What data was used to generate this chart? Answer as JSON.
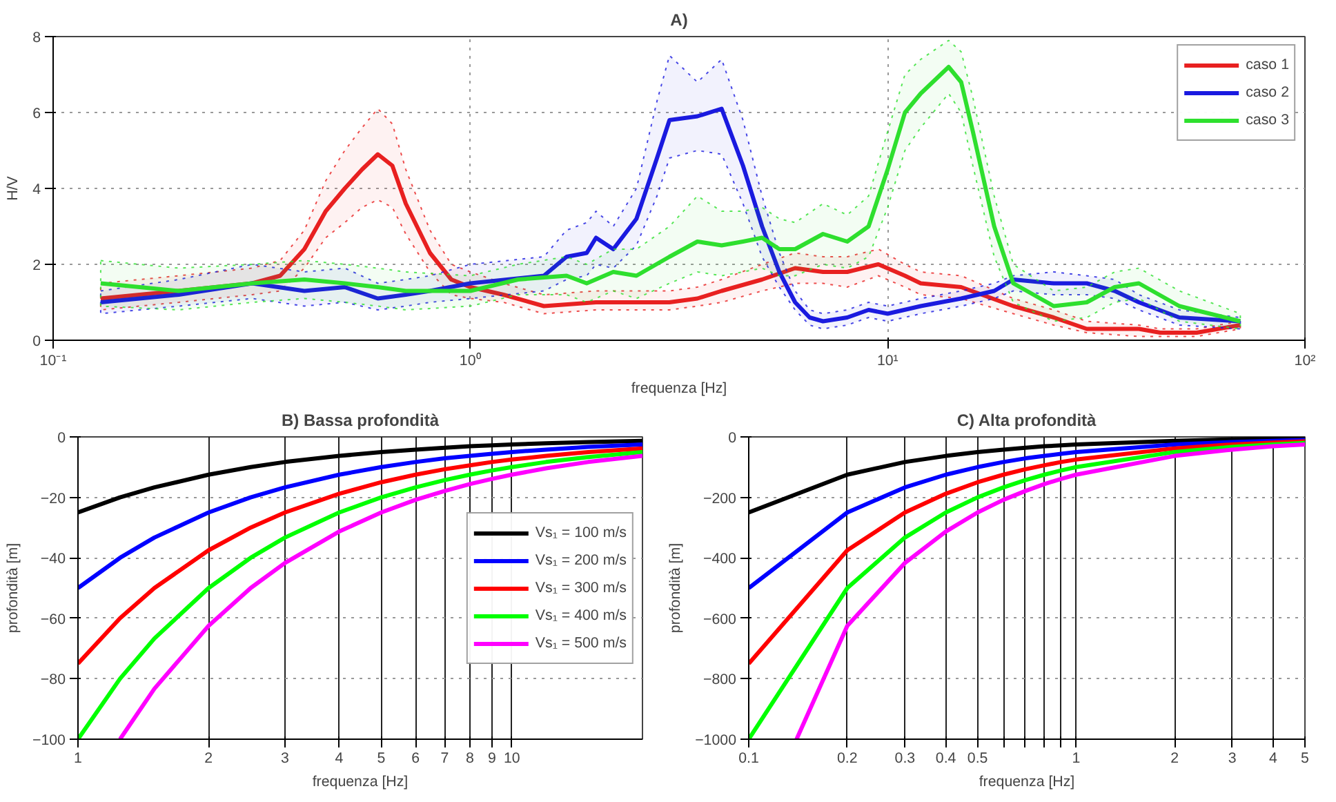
{
  "chart_data": [
    {
      "type": "line",
      "title": "A)",
      "xlabel": "frequenza [Hz]",
      "ylabel": "H/V",
      "log": "x",
      "xlim": [
        0.1,
        100
      ],
      "ylim": [
        0,
        8
      ],
      "xticks": [
        {
          "value": 0.1,
          "label": "10⁻¹"
        },
        {
          "value": 1,
          "label": "10⁰"
        },
        {
          "value": 10,
          "label": "10¹"
        },
        {
          "value": 100,
          "label": "10²"
        }
      ],
      "yticks": [
        0,
        2,
        4,
        6,
        8
      ],
      "grid": true,
      "legend": "top right",
      "line_style": "solid",
      "series": [
        {
          "name": "caso 1",
          "color": "#e82020",
          "x": [
            0.13,
            0.2,
            0.3,
            0.35,
            0.4,
            0.45,
            0.5,
            0.55,
            0.6,
            0.65,
            0.7,
            0.8,
            0.9,
            1,
            1.2,
            1.5,
            2,
            2.5,
            3,
            3.5,
            4,
            5,
            6,
            7,
            8,
            9.5,
            11,
            12,
            15,
            20,
            25,
            30,
            40,
            45,
            55,
            70
          ],
          "values": [
            1.1,
            1.3,
            1.5,
            1.7,
            2.4,
            3.4,
            4.0,
            4.5,
            4.9,
            4.6,
            3.6,
            2.3,
            1.6,
            1.4,
            1.2,
            0.9,
            1.0,
            1.0,
            1.0,
            1.1,
            1.3,
            1.6,
            1.9,
            1.8,
            1.8,
            2.0,
            1.7,
            1.5,
            1.4,
            0.9,
            0.6,
            0.3,
            0.3,
            0.2,
            0.2,
            0.4
          ],
          "upper": [
            1.5,
            1.7,
            1.9,
            2.1,
            2.9,
            4.2,
            5.0,
            5.6,
            6.1,
            5.7,
            4.5,
            2.9,
            2.0,
            1.8,
            1.5,
            1.2,
            1.3,
            1.3,
            1.3,
            1.4,
            1.6,
            2.0,
            2.3,
            2.2,
            2.2,
            2.4,
            2.0,
            1.8,
            1.7,
            1.1,
            0.8,
            0.5,
            0.4,
            0.3,
            0.3,
            0.5
          ],
          "lower": [
            0.8,
            1.0,
            1.2,
            1.3,
            1.9,
            2.7,
            3.1,
            3.5,
            3.7,
            3.5,
            2.8,
            1.8,
            1.2,
            1.1,
            1.0,
            0.7,
            0.8,
            0.8,
            0.8,
            0.9,
            1.0,
            1.3,
            1.5,
            1.5,
            1.4,
            1.7,
            1.4,
            1.2,
            1.1,
            0.7,
            0.4,
            0.2,
            0.1,
            0.1,
            0.1,
            0.3
          ]
        },
        {
          "name": "caso 2",
          "color": "#1a1ae0",
          "x": [
            0.13,
            0.2,
            0.3,
            0.4,
            0.5,
            0.6,
            0.7,
            0.8,
            1,
            1.5,
            1.7,
            1.9,
            2,
            2.2,
            2.5,
            2.8,
            3,
            3.5,
            4,
            4.5,
            5,
            5.5,
            6,
            6.5,
            7,
            8,
            9,
            10,
            12,
            15,
            18,
            20,
            25,
            30,
            35,
            40,
            50,
            70
          ],
          "values": [
            1.0,
            1.2,
            1.5,
            1.3,
            1.4,
            1.1,
            1.2,
            1.3,
            1.5,
            1.7,
            2.2,
            2.3,
            2.7,
            2.4,
            3.2,
            4.8,
            5.8,
            5.9,
            6.1,
            4.6,
            3.0,
            1.8,
            1.0,
            0.6,
            0.5,
            0.6,
            0.8,
            0.7,
            0.9,
            1.1,
            1.3,
            1.6,
            1.5,
            1.5,
            1.3,
            1.0,
            0.6,
            0.5
          ],
          "upper": [
            1.3,
            1.6,
            2.0,
            1.8,
            1.9,
            1.5,
            1.6,
            1.7,
            2.0,
            2.2,
            2.9,
            3.1,
            3.4,
            3.0,
            4.0,
            6.3,
            7.5,
            6.8,
            7.4,
            5.8,
            3.8,
            2.3,
            1.3,
            0.8,
            0.7,
            0.8,
            1.0,
            0.9,
            1.1,
            1.3,
            1.5,
            1.7,
            1.8,
            1.7,
            1.6,
            1.2,
            0.8,
            0.6
          ],
          "lower": [
            0.7,
            0.9,
            1.1,
            0.9,
            1.0,
            0.8,
            0.9,
            1.0,
            1.1,
            1.3,
            1.6,
            1.7,
            2.0,
            1.9,
            2.5,
            3.8,
            4.8,
            5.0,
            4.9,
            3.6,
            2.2,
            1.4,
            0.8,
            0.4,
            0.3,
            0.4,
            0.6,
            0.5,
            0.7,
            0.9,
            1.1,
            1.3,
            1.2,
            1.2,
            1.1,
            0.8,
            0.4,
            0.3
          ]
        },
        {
          "name": "caso 3",
          "color": "#2ee02e",
          "x": [
            0.13,
            0.2,
            0.3,
            0.4,
            0.5,
            0.6,
            0.7,
            1,
            1.3,
            1.7,
            1.9,
            2.2,
            2.5,
            3,
            3.5,
            4,
            4.5,
            5,
            5.5,
            6,
            7,
            8,
            9,
            10,
            11,
            12,
            14,
            15,
            16,
            18,
            20,
            25,
            30,
            35,
            40,
            50,
            70
          ],
          "values": [
            1.5,
            1.3,
            1.5,
            1.6,
            1.5,
            1.4,
            1.3,
            1.3,
            1.6,
            1.7,
            1.5,
            1.8,
            1.7,
            2.2,
            2.6,
            2.5,
            2.6,
            2.7,
            2.4,
            2.4,
            2.8,
            2.6,
            3.0,
            4.5,
            6.0,
            6.5,
            7.2,
            6.8,
            5.5,
            3.0,
            1.5,
            0.9,
            1.0,
            1.4,
            1.5,
            0.9,
            0.5
          ],
          "upper": [
            2.1,
            1.9,
            2.0,
            2.1,
            2.0,
            1.9,
            1.8,
            1.7,
            2.0,
            2.2,
            2.0,
            2.4,
            2.4,
            3.0,
            3.8,
            3.4,
            3.4,
            3.5,
            3.2,
            3.1,
            3.6,
            3.3,
            3.8,
            5.5,
            7.0,
            7.4,
            7.9,
            7.6,
            6.4,
            3.8,
            2.0,
            1.3,
            1.4,
            1.8,
            1.9,
            1.3,
            0.7
          ],
          "lower": [
            0.9,
            0.8,
            1.0,
            1.1,
            1.0,
            0.9,
            0.8,
            0.9,
            1.2,
            1.2,
            1.0,
            1.3,
            1.1,
            1.5,
            1.8,
            1.7,
            1.8,
            1.9,
            1.7,
            1.7,
            2.0,
            1.9,
            2.2,
            3.5,
            5.0,
            5.6,
            6.5,
            6.0,
            4.6,
            2.2,
            1.0,
            0.5,
            0.6,
            1.0,
            1.1,
            0.5,
            0.3
          ]
        }
      ]
    },
    {
      "type": "line",
      "title": "B) Bassa profondità",
      "xlabel": "frequenza [Hz]",
      "ylabel": "profondità [m]",
      "log": "x",
      "xlim": [
        1,
        20
      ],
      "ylim": [
        -100,
        0
      ],
      "xticks": [
        1,
        2,
        3,
        4,
        5,
        6,
        7,
        8,
        9,
        10
      ],
      "yticks": [
        -100,
        -80,
        -60,
        -40,
        -20,
        0
      ],
      "grid": true,
      "legend": "right",
      "line_style": "solid",
      "x": [
        1,
        1.25,
        1.5,
        2,
        2.5,
        3,
        4,
        5,
        6,
        7,
        8,
        9,
        10,
        12,
        15,
        20
      ],
      "series": [
        {
          "name": "Vs₁ = 100 m/s",
          "color": "#000000",
          "values": [
            -25,
            -20,
            -16.7,
            -12.5,
            -10,
            -8.3,
            -6.3,
            -5,
            -4.2,
            -3.6,
            -3.1,
            -2.8,
            -2.5,
            -2.1,
            -1.7,
            -1.3
          ]
        },
        {
          "name": "Vs₁ = 200 m/s",
          "color": "#0000ff",
          "values": [
            -50,
            -40,
            -33.3,
            -25,
            -20,
            -16.7,
            -12.5,
            -10,
            -8.3,
            -7.1,
            -6.3,
            -5.6,
            -5,
            -4.2,
            -3.3,
            -2.5
          ]
        },
        {
          "name": "Vs₁ = 300 m/s",
          "color": "#ff0000",
          "values": [
            -75,
            -60,
            -50,
            -37.5,
            -30,
            -25,
            -18.8,
            -15,
            -12.5,
            -10.7,
            -9.4,
            -8.3,
            -7.5,
            -6.3,
            -5,
            -3.8
          ]
        },
        {
          "name": "Vs₁ = 400 m/s",
          "color": "#00ff00",
          "values": [
            -100,
            -80,
            -66.7,
            -50,
            -40,
            -33.3,
            -25,
            -20,
            -16.7,
            -14.3,
            -12.5,
            -11.1,
            -10,
            -8.3,
            -6.7,
            -5
          ]
        },
        {
          "name": "Vs₁ = 500 m/s",
          "color": "#ff00ff",
          "values": [
            null,
            -100,
            -83.3,
            -62.5,
            -50,
            -41.7,
            -31.3,
            -25,
            -20.8,
            -17.9,
            -15.6,
            -13.9,
            -12.5,
            -10.4,
            -8.3,
            -6.3
          ]
        }
      ]
    },
    {
      "type": "line",
      "title": "C) Alta profondità",
      "xlabel": "frequenza [Hz]",
      "ylabel": "profondità [m]",
      "log": "x",
      "xlim": [
        0.1,
        5
      ],
      "ylim": [
        -1000,
        0
      ],
      "xticks": [
        0.1,
        0.2,
        0.3,
        0.4,
        0.5,
        {
          "value": 0.6,
          "label": null
        },
        {
          "value": 0.7,
          "label": null
        },
        {
          "value": 0.8,
          "label": null
        },
        {
          "value": 0.9,
          "label": null
        },
        1,
        2,
        3,
        4,
        5
      ],
      "yticks": [
        -1000,
        -800,
        -600,
        -400,
        -200,
        0
      ],
      "grid": true,
      "line_style": "solid",
      "x": [
        0.1,
        0.2,
        0.3,
        0.4,
        0.5,
        0.6,
        0.7,
        0.8,
        0.9,
        1,
        2,
        3,
        4,
        5
      ],
      "series": [
        {
          "color": "#000000",
          "values": [
            -250,
            -125,
            -83,
            -63,
            -50,
            -42,
            -36,
            -31,
            -28,
            -25,
            -13,
            -8,
            -6,
            -5
          ]
        },
        {
          "color": "#0000ff",
          "values": [
            -500,
            -250,
            -167,
            -125,
            -100,
            -83,
            -71,
            -63,
            -56,
            -50,
            -25,
            -17,
            -13,
            -10
          ]
        },
        {
          "color": "#ff0000",
          "values": [
            -750,
            -375,
            -250,
            -188,
            -150,
            -125,
            -107,
            -94,
            -83,
            -75,
            -38,
            -25,
            -19,
            -15
          ]
        },
        {
          "color": "#00ff00",
          "values": [
            -1000,
            -500,
            -333,
            -250,
            -200,
            -167,
            -143,
            -125,
            -111,
            -100,
            -50,
            -33,
            -25,
            -20
          ]
        },
        {
          "color": "#ff00ff",
          "x": [
            0.14,
            0.2,
            0.3,
            0.4,
            0.5,
            0.6,
            0.7,
            0.8,
            0.9,
            1,
            2,
            3,
            4,
            5
          ],
          "values": [
            -1000,
            -625,
            -417,
            -313,
            -250,
            -208,
            -179,
            -156,
            -139,
            -125,
            -63,
            -42,
            -31,
            -25
          ]
        }
      ]
    }
  ]
}
